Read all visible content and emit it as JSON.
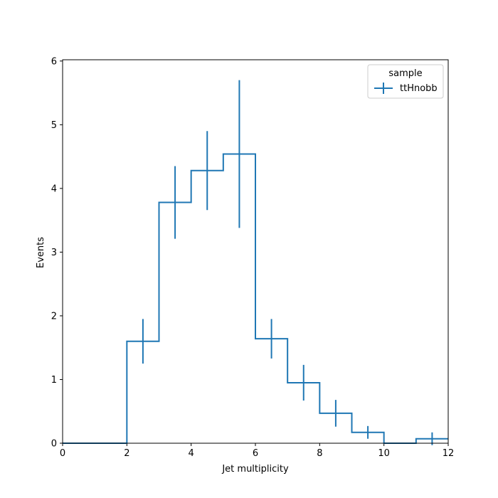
{
  "chart_data": {
    "type": "histogram-step",
    "xlabel": "Jet multiplicity",
    "ylabel": "Events",
    "xlim": [
      0,
      12
    ],
    "ylim": [
      0,
      6.02
    ],
    "x_ticks": [
      0,
      2,
      4,
      6,
      8,
      10,
      12
    ],
    "y_ticks": [
      0,
      1,
      2,
      3,
      4,
      5,
      6
    ],
    "bin_edges": [
      0,
      1,
      2,
      3,
      4,
      5,
      6,
      7,
      8,
      9,
      10,
      11,
      12
    ],
    "series": [
      {
        "name": "ttHnobb",
        "color": "#1f77b4",
        "values": [
          0,
          0,
          1.6,
          3.78,
          4.28,
          4.54,
          1.64,
          0.95,
          0.47,
          0.17,
          0,
          0.07
        ],
        "errors": [
          0,
          0,
          0.35,
          0.57,
          0.62,
          1.16,
          0.31,
          0.28,
          0.21,
          0.1,
          0,
          0.1
        ]
      }
    ],
    "legend": {
      "title": "sample",
      "placement": "top-right"
    },
    "grid": false
  }
}
